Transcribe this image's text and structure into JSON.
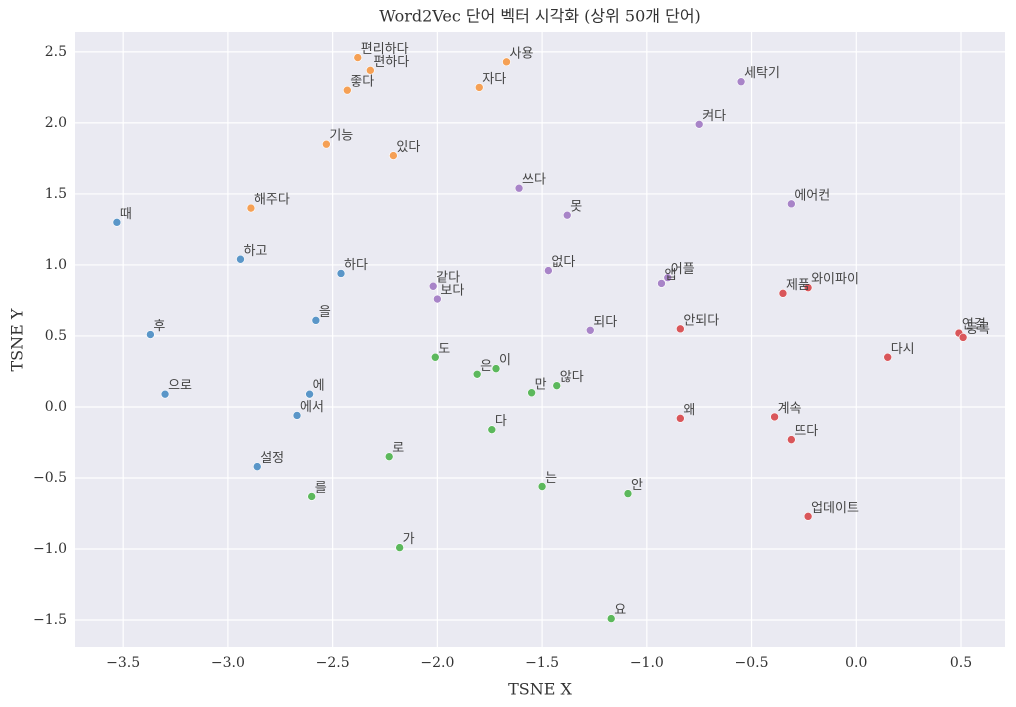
{
  "chart_data": {
    "type": "scatter",
    "title": "Word2Vec 단어 벡터 시각화 (상위 50개 단어)",
    "x_label": "TSNE X",
    "y_label": "TSNE Y",
    "xlim": [
      -3.73,
      0.71
    ],
    "ylim": [
      -1.69,
      2.64
    ],
    "grid": true,
    "xticks": [
      {
        "value": -3.5,
        "label": "−3.5"
      },
      {
        "value": -3.0,
        "label": "−3.0"
      },
      {
        "value": -2.5,
        "label": "−2.5"
      },
      {
        "value": -2.0,
        "label": "−2.0"
      },
      {
        "value": -1.5,
        "label": "−1.5"
      },
      {
        "value": -1.0,
        "label": "−1.0"
      },
      {
        "value": -0.5,
        "label": "−0.5"
      },
      {
        "value": 0,
        "label": "0.0"
      },
      0.5
    ],
    "yticks": [
      {
        "value": -1.5,
        "label": "−1.5"
      },
      {
        "value": -1.0,
        "label": "−1.0"
      },
      {
        "value": -0.5,
        "label": "−0.5"
      },
      {
        "value": 0,
        "label": "0.0"
      },
      0.5,
      {
        "value": 1,
        "label": "1.0"
      },
      1.5,
      {
        "value": 2,
        "label": "2.0"
      },
      2.5
    ],
    "series": [
      {
        "color": "#f5a055",
        "labels": [
          "편리하다",
          "편하다",
          "좋다",
          "사용",
          "자다",
          "기능",
          "있다",
          "해주다"
        ],
        "x": [
          -2.38,
          -2.32,
          -2.43,
          -1.67,
          -1.8,
          -2.53,
          -2.21,
          -2.89
        ],
        "y": [
          2.46,
          2.37,
          2.23,
          2.43,
          2.25,
          1.85,
          1.77,
          1.4
        ]
      },
      {
        "color": "#5a96c8",
        "labels": [
          "때",
          "하고",
          "하다",
          "을",
          "후",
          "으로",
          "에",
          "에서",
          "설정"
        ],
        "x": [
          -3.53,
          -2.94,
          -2.46,
          -2.58,
          -3.37,
          -3.3,
          -2.61,
          -2.67,
          -2.86
        ],
        "y": [
          1.3,
          1.04,
          0.94,
          0.61,
          0.51,
          0.09,
          0.09,
          -0.06,
          -0.42
        ]
      },
      {
        "color": "#5cb85c",
        "labels": [
          "도",
          "은",
          "이",
          "만",
          "않다",
          "다",
          "로",
          "는",
          "안",
          "를",
          "가",
          "요"
        ],
        "x": [
          -2.01,
          -1.81,
          -1.72,
          -1.55,
          -1.43,
          -1.74,
          -2.23,
          -1.5,
          -1.09,
          -2.6,
          -2.18,
          -1.17
        ],
        "y": [
          0.35,
          0.23,
          0.27,
          0.1,
          0.15,
          -0.16,
          -0.35,
          -0.56,
          -0.61,
          -0.63,
          -0.99,
          -1.49
        ]
      },
      {
        "color": "#a884c8",
        "labels": [
          "세탁기",
          "켜다",
          "쓰다",
          "못",
          "에어컨",
          "없다",
          "어플",
          "앱",
          "같다",
          "보다",
          "되다"
        ],
        "x": [
          -0.55,
          -0.75,
          -1.61,
          -1.38,
          -0.31,
          -1.47,
          -0.9,
          -0.93,
          -2.02,
          -2.0,
          -1.27
        ],
        "y": [
          2.29,
          1.99,
          1.54,
          1.35,
          1.43,
          0.96,
          0.91,
          0.87,
          0.85,
          0.76,
          0.54
        ]
      },
      {
        "color": "#d9565a",
        "labels": [
          "와이파이",
          "제품",
          "안되다",
          "연결",
          "등록",
          "다시",
          "왜",
          "계속",
          "뜨다",
          "업데이트"
        ],
        "x": [
          -0.23,
          -0.35,
          -0.84,
          0.49,
          0.51,
          0.15,
          -0.84,
          -0.39,
          -0.31,
          -0.23
        ],
        "y": [
          0.84,
          0.8,
          0.55,
          0.52,
          0.49,
          0.35,
          -0.08,
          -0.07,
          -0.23,
          -0.77
        ]
      }
    ]
  }
}
